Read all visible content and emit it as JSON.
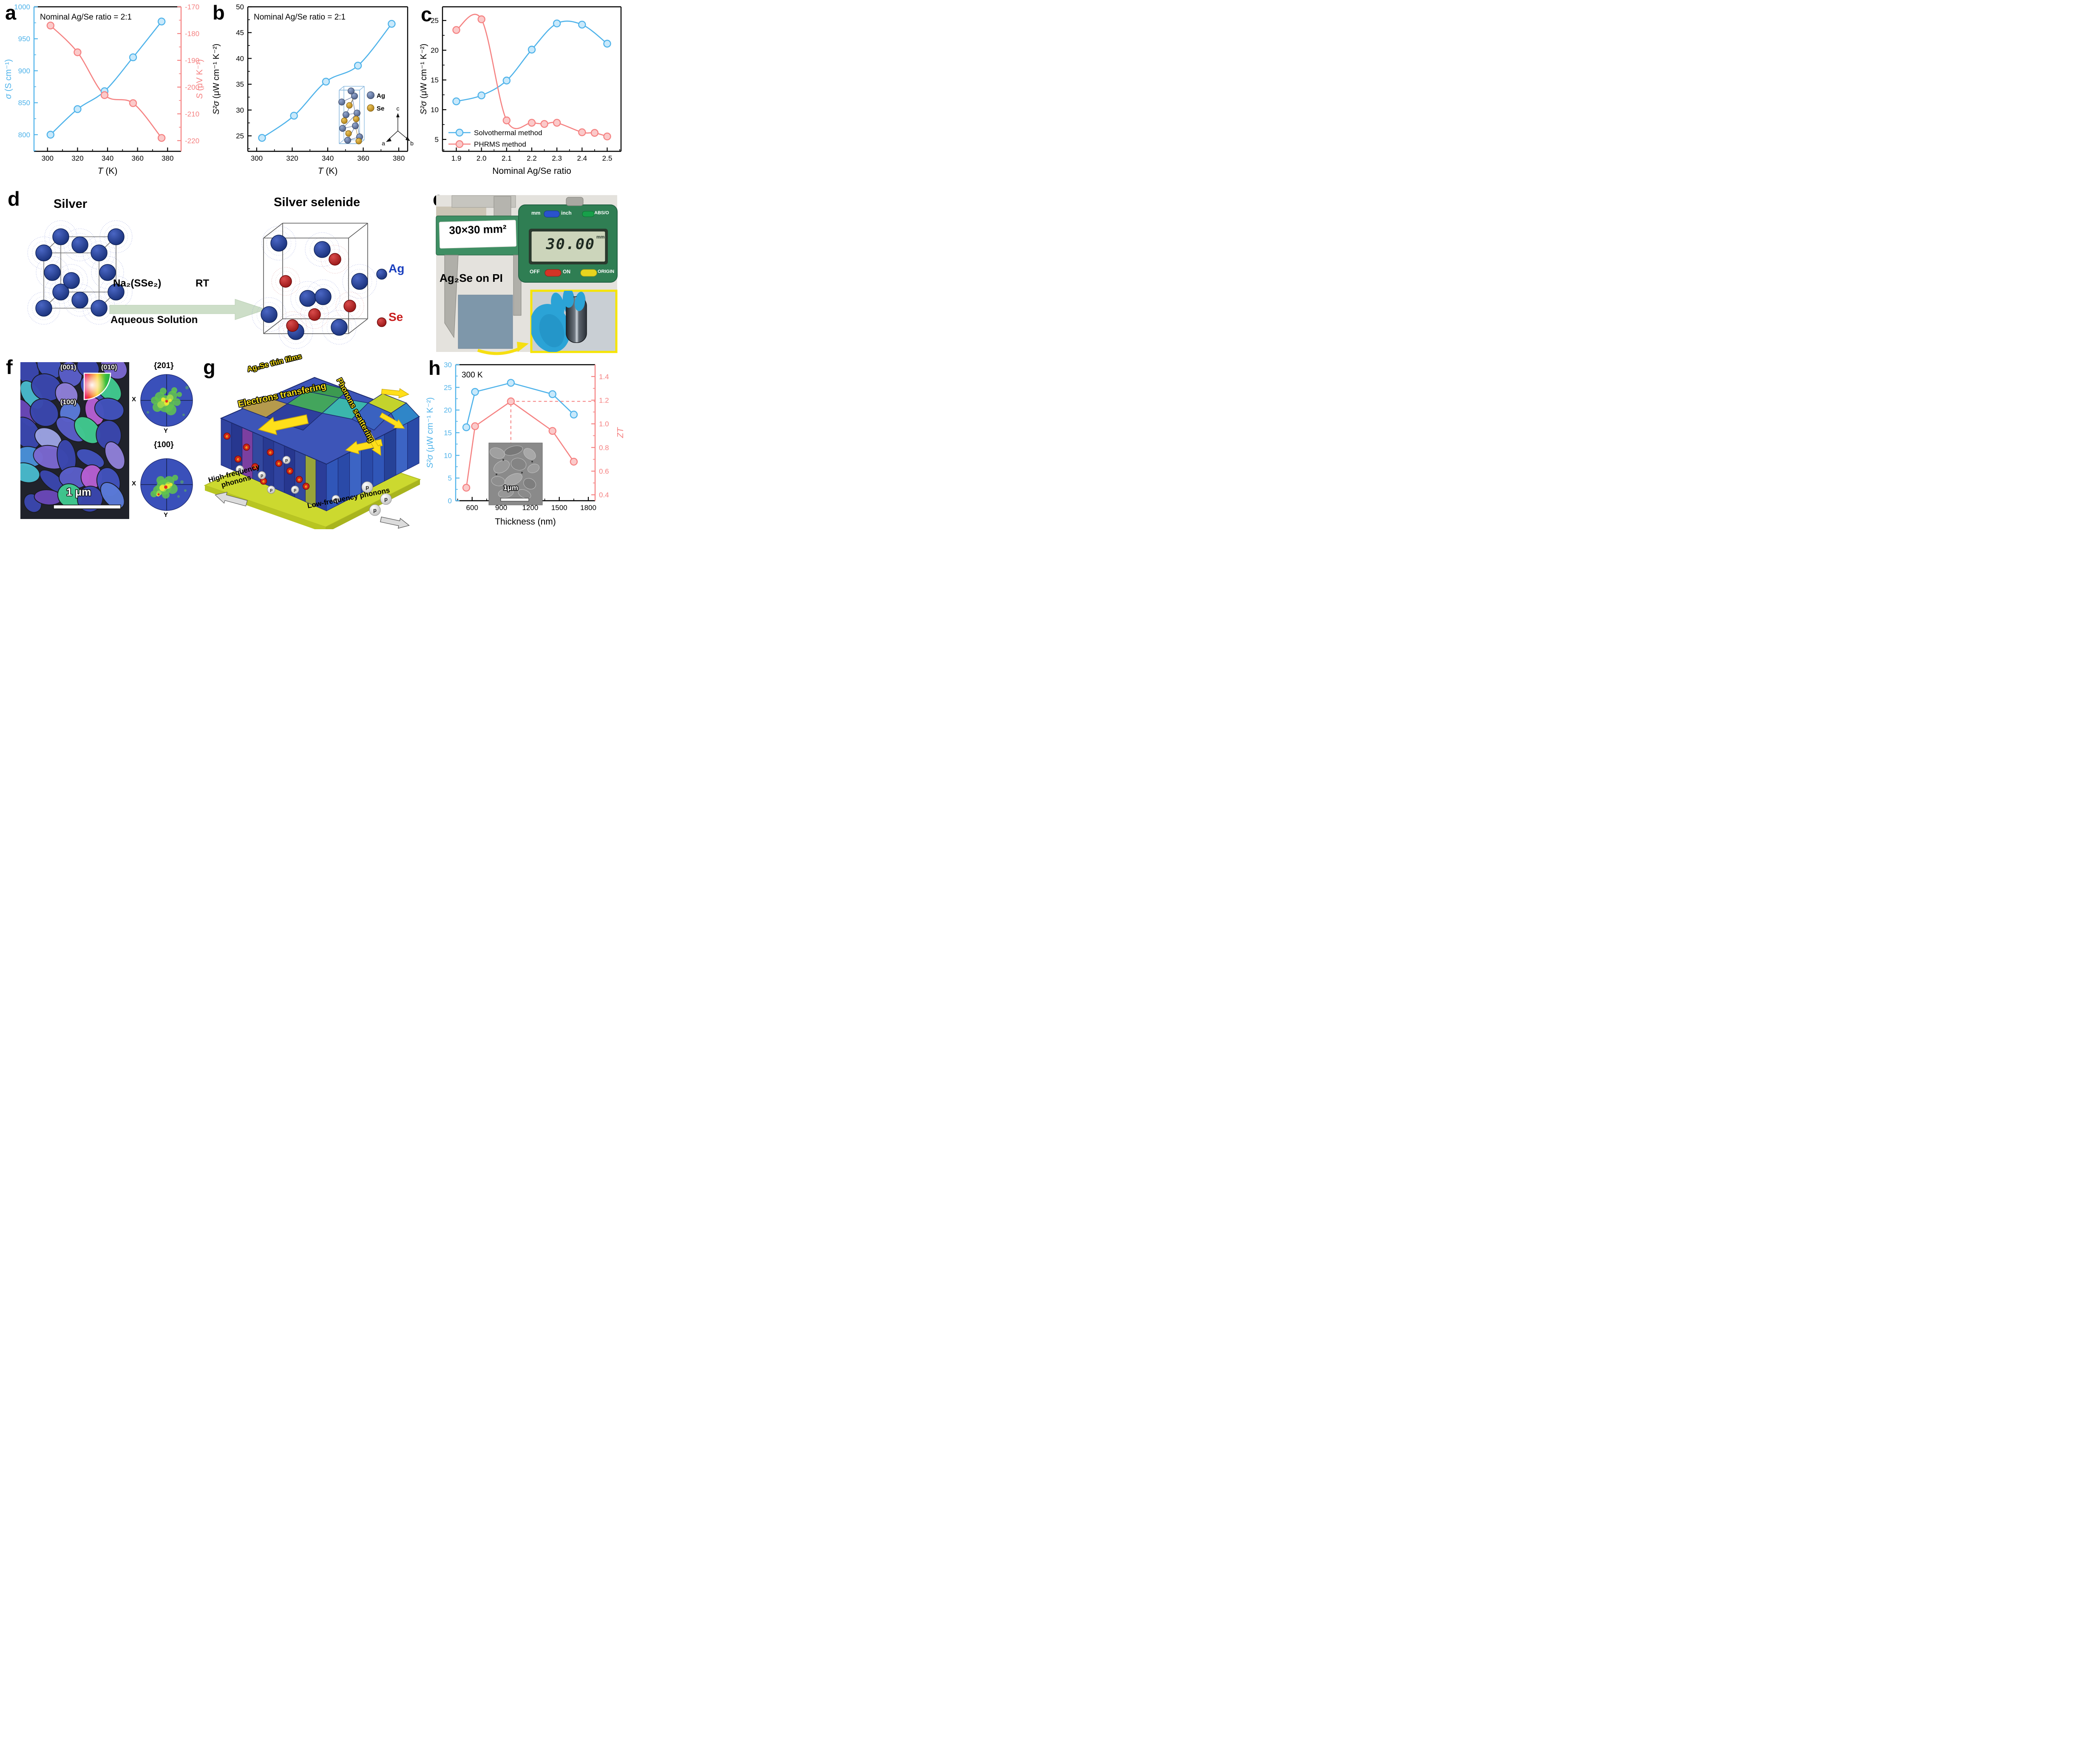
{
  "panels": {
    "a": {
      "letter": "a"
    },
    "b": {
      "letter": "b"
    },
    "c": {
      "letter": "c"
    },
    "d": {
      "letter": "d"
    },
    "e": {
      "letter": "e"
    },
    "f": {
      "letter": "f"
    },
    "g": {
      "letter": "g"
    },
    "h": {
      "letter": "h"
    }
  },
  "divider": {
    "color_left": "#62b9ee",
    "color_mid": "#a89cd8",
    "color_right": "#f3837f"
  },
  "chart_data": [
    {
      "id": "a",
      "type": "line",
      "annotation": "Nominal Ag/Se ratio = 2:1",
      "xlabel": {
        "italic": "T",
        "rest": " (K)"
      },
      "xlim": [
        291,
        389
      ],
      "xticks": [
        300,
        320,
        340,
        360,
        380
      ],
      "xminor": 10,
      "axes": {
        "left": {
          "label": {
            "italic": "σ",
            "rest": " (S cm⁻¹)"
          },
          "color": "#4fb3ea",
          "lim": [
            774,
            1000
          ],
          "ticks": [
            800,
            850,
            900,
            950,
            1000
          ],
          "minor": 25,
          "decimals": 0
        },
        "right": {
          "label": {
            "italic": "S",
            "rest": " (μV K⁻¹)"
          },
          "color": "#f58282",
          "lim": [
            -224,
            -170
          ],
          "ticks": [
            -220,
            -210,
            -200,
            -190,
            -180,
            -170
          ],
          "minor": 5,
          "decimals": 0
        }
      },
      "series": [
        {
          "name": "sigma",
          "axis": "left",
          "color": "#4fb3ea",
          "fill": "#c9e9fb",
          "smooth": true,
          "x": [
            302,
            320,
            338,
            357,
            376
          ],
          "y": [
            800,
            840,
            868,
            921,
            977
          ]
        },
        {
          "name": "S",
          "axis": "right",
          "color": "#f58282",
          "fill": "#fbcaca",
          "smooth": true,
          "x": [
            302,
            320,
            338,
            357,
            376
          ],
          "y": [
            -177,
            -187,
            -203,
            -206,
            -219
          ]
        }
      ]
    },
    {
      "id": "b",
      "type": "line",
      "annotation": "Nominal Ag/Se ratio = 2:1",
      "xlabel": {
        "italic": "T",
        "rest": " (K)"
      },
      "xlim": [
        295,
        385
      ],
      "xticks": [
        300,
        320,
        340,
        360,
        380
      ],
      "xminor": 10,
      "axes": {
        "left": {
          "label": {
            "italic": "S²σ",
            "rest": " (μW cm⁻¹ K⁻²)"
          },
          "color": "#000000",
          "lim": [
            22,
            50
          ],
          "ticks": [
            25,
            30,
            35,
            40,
            45,
            50
          ],
          "minor": 2.5,
          "decimals": 0
        }
      },
      "series": [
        {
          "name": "S2sigma",
          "axis": "left",
          "color": "#4fb3ea",
          "fill": "#c9e9fb",
          "smooth": true,
          "x": [
            303,
            321,
            339,
            357,
            376
          ],
          "y": [
            24.6,
            28.9,
            35.5,
            38.6,
            46.7
          ]
        }
      ]
    },
    {
      "id": "c",
      "type": "line",
      "xlabel": {
        "italic": "",
        "rest": "Nominal Ag/Se ratio"
      },
      "xlim": [
        1.845,
        2.555
      ],
      "xticks": [
        1.9,
        2.0,
        2.1,
        2.2,
        2.3,
        2.4,
        2.5
      ],
      "xminor": 0.05,
      "xdecimals": 1,
      "axes": {
        "left": {
          "label": {
            "italic": "S²σ",
            "rest": " (μW cm⁻¹ K⁻²)"
          },
          "color": "#000000",
          "lim": [
            3,
            27.3
          ],
          "ticks": [
            5,
            10,
            15,
            20,
            25
          ],
          "minor": 2.5,
          "decimals": 0
        }
      },
      "series": [
        {
          "name": "Solvothermal method",
          "axis": "left",
          "color": "#4fb3ea",
          "fill": "#c9e9fb",
          "smooth": true,
          "x": [
            1.9,
            2.0,
            2.1,
            2.2,
            2.3,
            2.4,
            2.5
          ],
          "y": [
            11.4,
            12.4,
            14.9,
            20.1,
            24.5,
            24.3,
            21.1
          ]
        },
        {
          "name": "PHRMS method",
          "axis": "left",
          "color": "#f58282",
          "fill": "#fbcaca",
          "smooth": true,
          "x": [
            1.9,
            2.0,
            2.1,
            2.2,
            2.25,
            2.3,
            2.4,
            2.45,
            2.5
          ],
          "y": [
            23.4,
            25.2,
            8.2,
            7.8,
            7.6,
            7.8,
            6.2,
            6.1,
            5.5
          ]
        }
      ],
      "legend": {
        "position": "bottom-left",
        "entries": [
          "Solvothermal method",
          "PHRMS method"
        ]
      }
    },
    {
      "id": "h",
      "type": "line",
      "annotation": "300 K",
      "xlabel": {
        "italic": "",
        "rest": "Thickness (nm)"
      },
      "xlim": [
        430,
        1870
      ],
      "xticks": [
        600,
        900,
        1200,
        1500,
        1800
      ],
      "xminor": 150,
      "axes": {
        "left": {
          "label": {
            "italic": "S²σ",
            "rest": " (μW cm⁻¹ K⁻²)"
          },
          "color": "#4fb3ea",
          "lim": [
            0,
            30
          ],
          "ticks": [
            0,
            5,
            10,
            15,
            20,
            25,
            30
          ],
          "minor": 2.5,
          "decimals": 0
        },
        "right": {
          "label": {
            "italic": "ZT",
            "rest": ""
          },
          "color": "#f58282",
          "lim": [
            0.35,
            1.5
          ],
          "ticks": [
            0.4,
            0.6,
            0.8,
            1.0,
            1.2,
            1.4
          ],
          "minor": 0.1,
          "decimals": 1
        }
      },
      "series": [
        {
          "name": "S2sigma",
          "axis": "left",
          "color": "#4fb3ea",
          "fill": "#c9e9fb",
          "smooth": false,
          "x": [
            540,
            630,
            1000,
            1430,
            1650
          ],
          "y": [
            16.2,
            24.0,
            26.0,
            23.5,
            19.0
          ]
        },
        {
          "name": "ZT",
          "axis": "right",
          "color": "#f58282",
          "fill": "#fbcaca",
          "smooth": false,
          "x": [
            540,
            630,
            1000,
            1430,
            1650
          ],
          "y": [
            0.46,
            0.98,
            1.19,
            0.94,
            0.68
          ]
        }
      ],
      "guides": {
        "x": 1000,
        "y": 1.19,
        "axis": "right",
        "color": "#f58282"
      }
    }
  ],
  "panel_b_extra": {
    "inset_legend": {
      "ag": "Ag",
      "se": "Se"
    },
    "inset_axes": {
      "a": "a",
      "b": "b",
      "c": "c"
    }
  },
  "panel_d": {
    "title_left": "Silver",
    "title_right": "Silver selenide",
    "reagent": "Na₂(SSe₂)",
    "condition": "RT",
    "solvent": "Aqueous Solution",
    "legend_ag": "Ag",
    "legend_se": "Se",
    "ag_color": "#1a3fbe",
    "se_color": "#c81d1d"
  },
  "panel_e": {
    "size_label": "30×30 mm²",
    "film_label": "Ag₂Se on PI",
    "btn_mm": "mm",
    "btn_inch": "inch",
    "btn_abs": "ABS/O",
    "lcd_value": "30.00",
    "lcd_unit": "mm",
    "btn_off": "OFF",
    "btn_on": "ON",
    "btn_origin": "ORIGIN"
  },
  "panel_f": {
    "dir_001": "(001)",
    "dir_010": "(010)",
    "dir_100": "(100)",
    "scale_bar": "1 μm",
    "pf1_title": "{201}",
    "pf2_title": "{100}",
    "x_label": "X",
    "y_label": "Y"
  },
  "panel_g": {
    "film_label": "Ag₂Se thin films",
    "electrons_label": "Electrons transfering",
    "phonons_label": "Phonons scattering",
    "high_freq": "High-frequency phonons",
    "low_freq": "Low-frequency phonons",
    "electron_symbol": "e",
    "phonon_symbol": "p"
  },
  "panel_h_extra": {
    "inset_scale": "1μm"
  }
}
